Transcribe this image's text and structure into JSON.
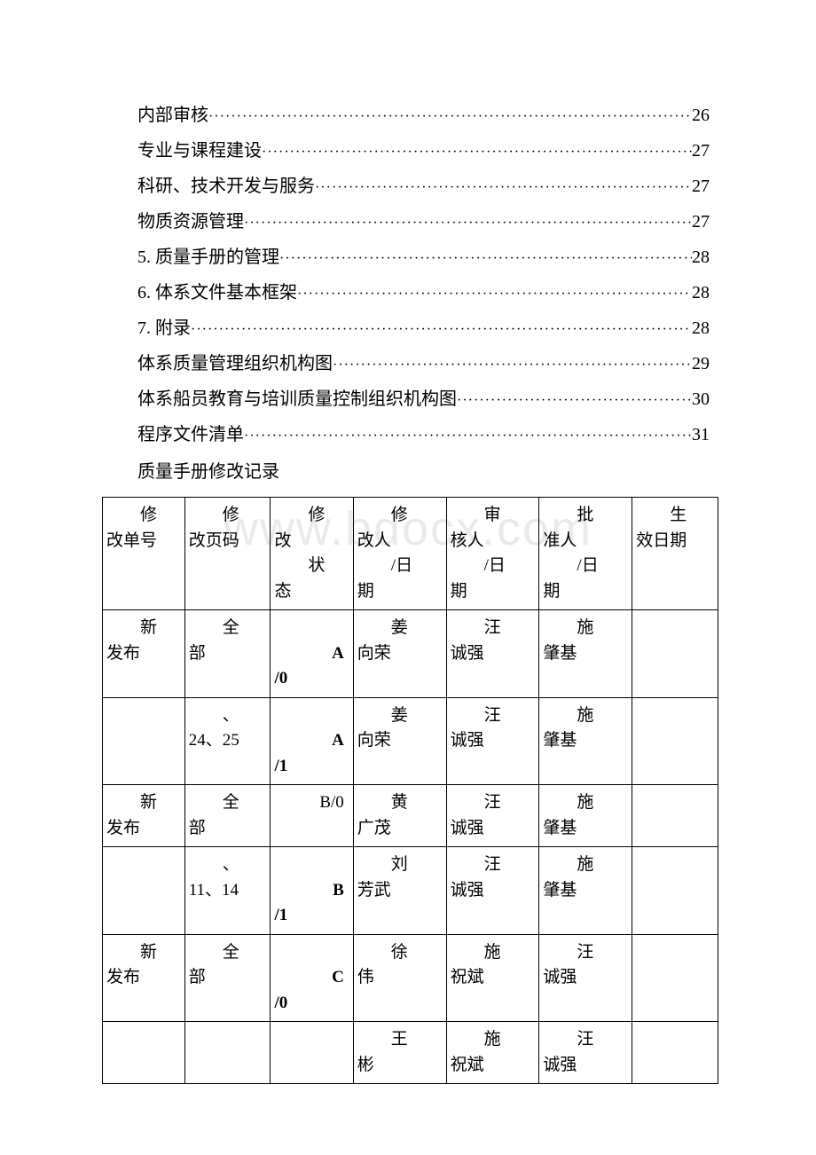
{
  "toc": [
    {
      "label": "内部审核",
      "page": "26"
    },
    {
      "label": "专业与课程建设",
      "page": "27"
    },
    {
      "label": "科研、技术开发与服务",
      "page": "27"
    },
    {
      "label": "物质资源管理",
      "page": "27"
    },
    {
      "label": "5. 质量手册的管理",
      "page": "28"
    },
    {
      "label": "6. 体系文件基本框架",
      "page": "28"
    },
    {
      "label": "7. 附录",
      "page": "28"
    },
    {
      "label": "体系质量管理组织机构图",
      "page": "29"
    },
    {
      "label": "体系船员教育与培训质量控制组织机构图",
      "page": "30"
    },
    {
      "label": "程序文件清单",
      "page": "31"
    }
  ],
  "subtitle": "质量手册修改记录",
  "table": {
    "headers": [
      {
        "line1": "修",
        "line2": "改单号"
      },
      {
        "line1": "修",
        "line2": "改页码"
      },
      {
        "line1": "修",
        "line2": "改",
        "line3": "状",
        "line4": "态"
      },
      {
        "line1": "修",
        "line2": "改人",
        "line3": "/日",
        "line4": "期"
      },
      {
        "line1": "审",
        "line2": "核人",
        "line3": "/日",
        "line4": "期"
      },
      {
        "line1": "批",
        "line2": "准人",
        "line3": "/日",
        "line4": "期"
      },
      {
        "line1": "生",
        "line2": "效日期"
      }
    ],
    "rows": [
      {
        "c0a": "新",
        "c0b": "发布",
        "c1a": "全",
        "c1b": "部",
        "c2": "A/0",
        "c2bold": true,
        "c3a": "姜",
        "c3b": "向荣",
        "c4a": "汪",
        "c4b": "诚强",
        "c5a": "施",
        "c5b": "肇基",
        "c6": ""
      },
      {
        "c0a": "",
        "c0b": "",
        "c1a": "、",
        "c1b": "24、25",
        "c2": "A/1",
        "c2bold": true,
        "c3a": "姜",
        "c3b": "向荣",
        "c4a": "汪",
        "c4b": "诚强",
        "c5a": "施",
        "c5b": "肇基",
        "c6": ""
      },
      {
        "c0a": "新",
        "c0b": "发布",
        "c1a": "全",
        "c1b": "部",
        "c2": "B/0",
        "c2bold": false,
        "c3a": "黄",
        "c3b": "广茂",
        "c4a": "汪",
        "c4b": "诚强",
        "c5a": "施",
        "c5b": "肇基",
        "c6": ""
      },
      {
        "c0a": "",
        "c0b": "",
        "c1a": "、",
        "c1b": "11、14",
        "c2": "B/1",
        "c2bold": true,
        "c3a": "刘",
        "c3b": "芳武",
        "c4a": "汪",
        "c4b": "诚强",
        "c5a": "施",
        "c5b": "肇基",
        "c6": ""
      },
      {
        "c0a": "新",
        "c0b": "发布",
        "c1a": "全",
        "c1b": "部",
        "c2": "C/0",
        "c2bold": true,
        "c3a": "徐",
        "c3b": "伟",
        "c4a": "施",
        "c4b": "祝斌",
        "c5a": "汪",
        "c5b": "诚强",
        "c6": ""
      },
      {
        "c0a": "",
        "c0b": "",
        "c1a": "",
        "c1b": "",
        "c2": "",
        "c2bold": false,
        "c3a": "王",
        "c3b": "彬",
        "c4a": "施",
        "c4b": "祝斌",
        "c5a": "汪",
        "c5b": "诚强",
        "c6": ""
      }
    ]
  },
  "watermark": "www.bdocx.com"
}
